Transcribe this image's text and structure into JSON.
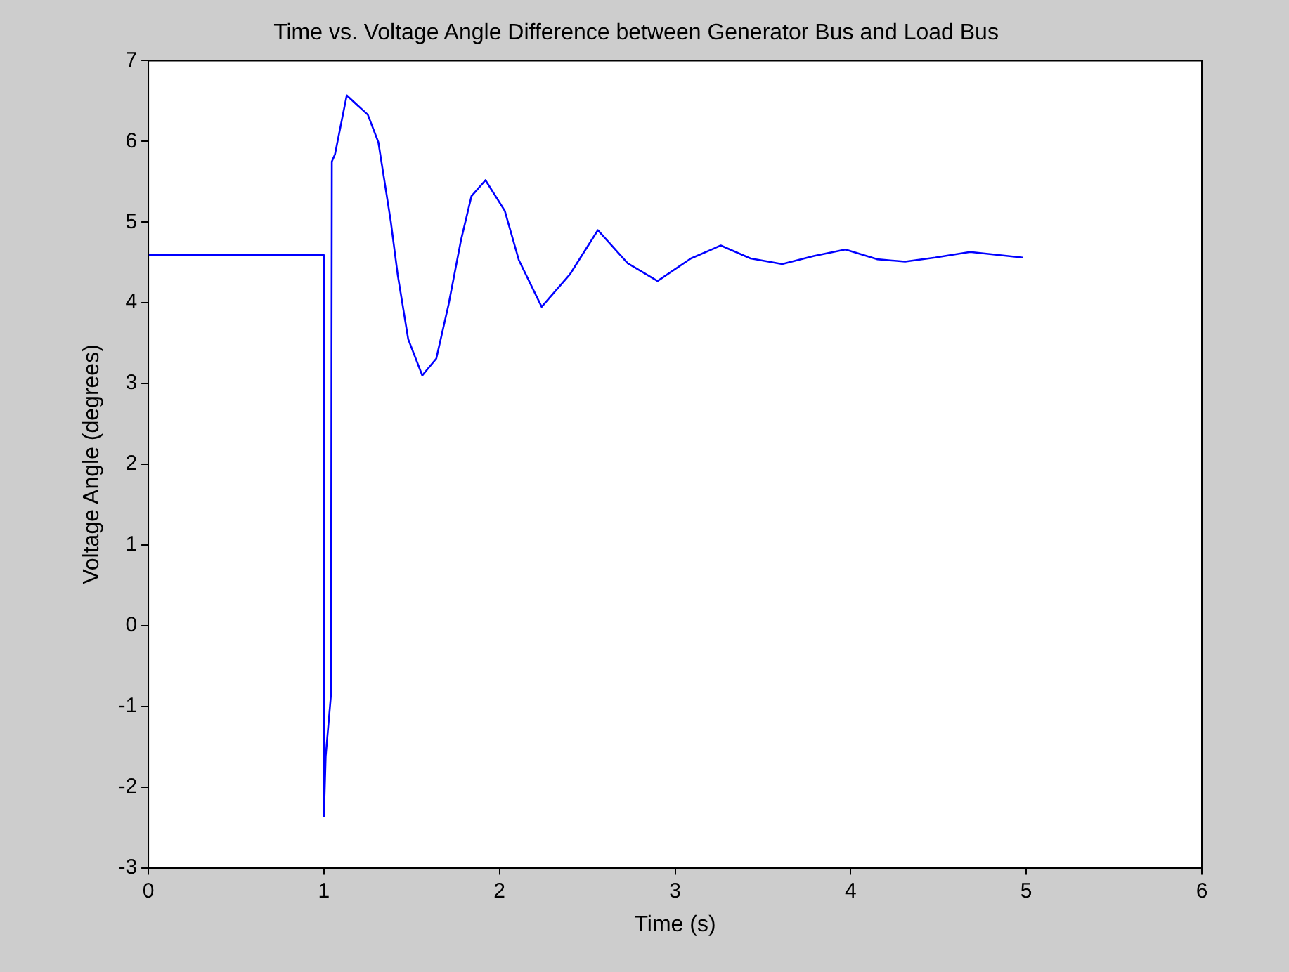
{
  "chart_data": {
    "type": "line",
    "title": "Time vs. Voltage Angle Difference between Generator Bus and Load Bus",
    "xlabel": "Time (s)",
    "ylabel": "Voltage Angle (degrees)",
    "series": [
      {
        "color": "#0000ff",
        "x": [
          0,
          1.0,
          1.0,
          1.01,
          1.04,
          1.045,
          1.063,
          1.13,
          1.25,
          1.31,
          1.38,
          1.42,
          1.48,
          1.56,
          1.64,
          1.71,
          1.78,
          1.84,
          1.92,
          2.03,
          2.11,
          2.24,
          2.4,
          2.56,
          2.73,
          2.9,
          3.09,
          3.26,
          3.43,
          3.61,
          3.79,
          3.97,
          4.15,
          4.31,
          4.48,
          4.68,
          4.98
        ],
        "values": [
          4.59,
          4.59,
          -2.36,
          -1.62,
          -0.86,
          5.75,
          5.84,
          6.57,
          6.33,
          5.99,
          5.02,
          4.35,
          3.55,
          3.1,
          3.31,
          3.98,
          4.77,
          5.32,
          5.52,
          5.14,
          4.53,
          3.95,
          4.35,
          4.9,
          4.49,
          4.27,
          4.55,
          4.71,
          4.55,
          4.48,
          4.58,
          4.66,
          4.54,
          4.51,
          4.56,
          4.63,
          4.56
        ]
      }
    ],
    "xlim": [
      0,
      6
    ],
    "xticks": [
      0,
      1,
      2,
      3,
      4,
      5,
      6
    ],
    "ylim": [
      -3,
      7
    ],
    "yticks": [
      -3,
      -2,
      -1,
      0,
      1,
      2,
      3,
      4,
      5,
      6,
      7
    ],
    "grid": false,
    "legend": false,
    "marker": "none",
    "line_style": "solid"
  }
}
